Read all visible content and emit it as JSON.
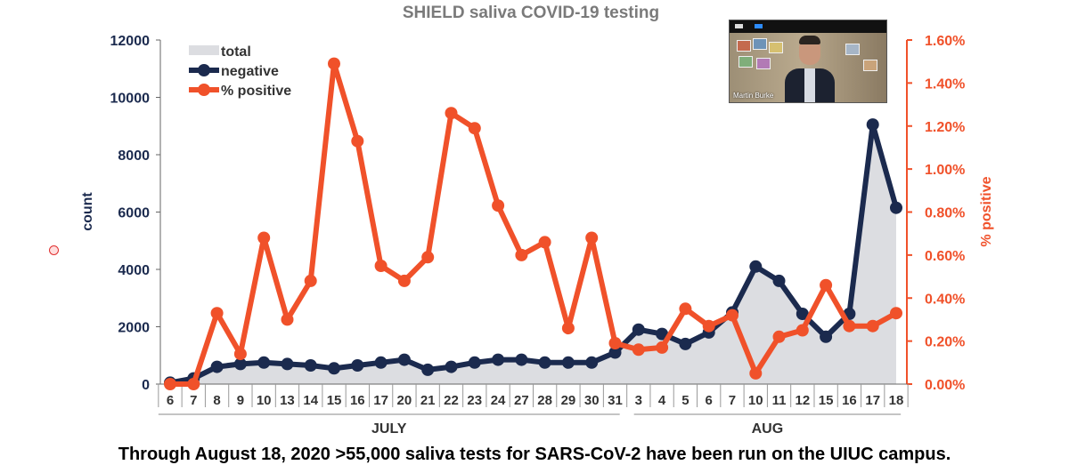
{
  "chart_data": {
    "type": "line",
    "title": "SHIELD saliva COVID-19 testing",
    "ylabel": "count",
    "y2label": "% positive",
    "ylim": [
      0,
      12000
    ],
    "y2lim": [
      0,
      0.016
    ],
    "y_ticks": [
      "0",
      "2000",
      "4000",
      "6000",
      "8000",
      "10000",
      "12000"
    ],
    "y2_ticks": [
      "0.00%",
      "0.20%",
      "0.40%",
      "0.60%",
      "0.80%",
      "1.00%",
      "1.20%",
      "1.40%",
      "1.60%"
    ],
    "categories": [
      "6",
      "7",
      "8",
      "9",
      "10",
      "13",
      "14",
      "15",
      "16",
      "17",
      "20",
      "21",
      "22",
      "23",
      "24",
      "27",
      "28",
      "29",
      "30",
      "31",
      "3",
      "4",
      "5",
      "6",
      "7",
      "10",
      "11",
      "12",
      "15",
      "16",
      "17",
      "18"
    ],
    "month_groups": [
      {
        "label": "JULY",
        "count": 20
      },
      {
        "label": "AUG",
        "count": 12
      }
    ],
    "legend_position": "top-left",
    "grid": false,
    "series": [
      {
        "name": "total",
        "kind": "area",
        "axis": "left",
        "color": "#dcdde1",
        "values": [
          50,
          200,
          650,
          750,
          800,
          750,
          700,
          600,
          700,
          800,
          900,
          550,
          650,
          800,
          880,
          860,
          780,
          780,
          780,
          1150,
          1950,
          1800,
          1450,
          1850,
          2550,
          4200,
          3650,
          2500,
          1700,
          2550,
          9100,
          6200
        ]
      },
      {
        "name": "negative",
        "kind": "line",
        "axis": "left",
        "color": "#1b2a4e",
        "values": [
          50,
          200,
          600,
          700,
          750,
          700,
          650,
          550,
          650,
          750,
          850,
          500,
          600,
          750,
          850,
          850,
          750,
          750,
          750,
          1100,
          1900,
          1750,
          1400,
          1800,
          2500,
          4100,
          3600,
          2450,
          1650,
          2450,
          9050,
          6150
        ]
      },
      {
        "name": "% positive",
        "kind": "line",
        "axis": "right",
        "color": "#f0512a",
        "values": [
          0.0,
          0.0,
          0.0033,
          0.0014,
          0.0068,
          0.003,
          0.0048,
          0.0149,
          0.0113,
          0.0055,
          0.0048,
          0.0059,
          0.0126,
          0.0119,
          0.0083,
          0.006,
          0.0066,
          0.0026,
          0.0068,
          0.0019,
          0.0016,
          0.0017,
          0.0035,
          0.0027,
          0.0032,
          0.0005,
          0.0022,
          0.0025,
          0.0046,
          0.0027,
          0.0027,
          0.0033
        ]
      }
    ]
  },
  "caption": "Through August 18, 2020 >55,000 saliva tests for SARS-CoV-2 have been run on the UIUC campus.",
  "video_overlay": {
    "name": "Martin Burke"
  }
}
